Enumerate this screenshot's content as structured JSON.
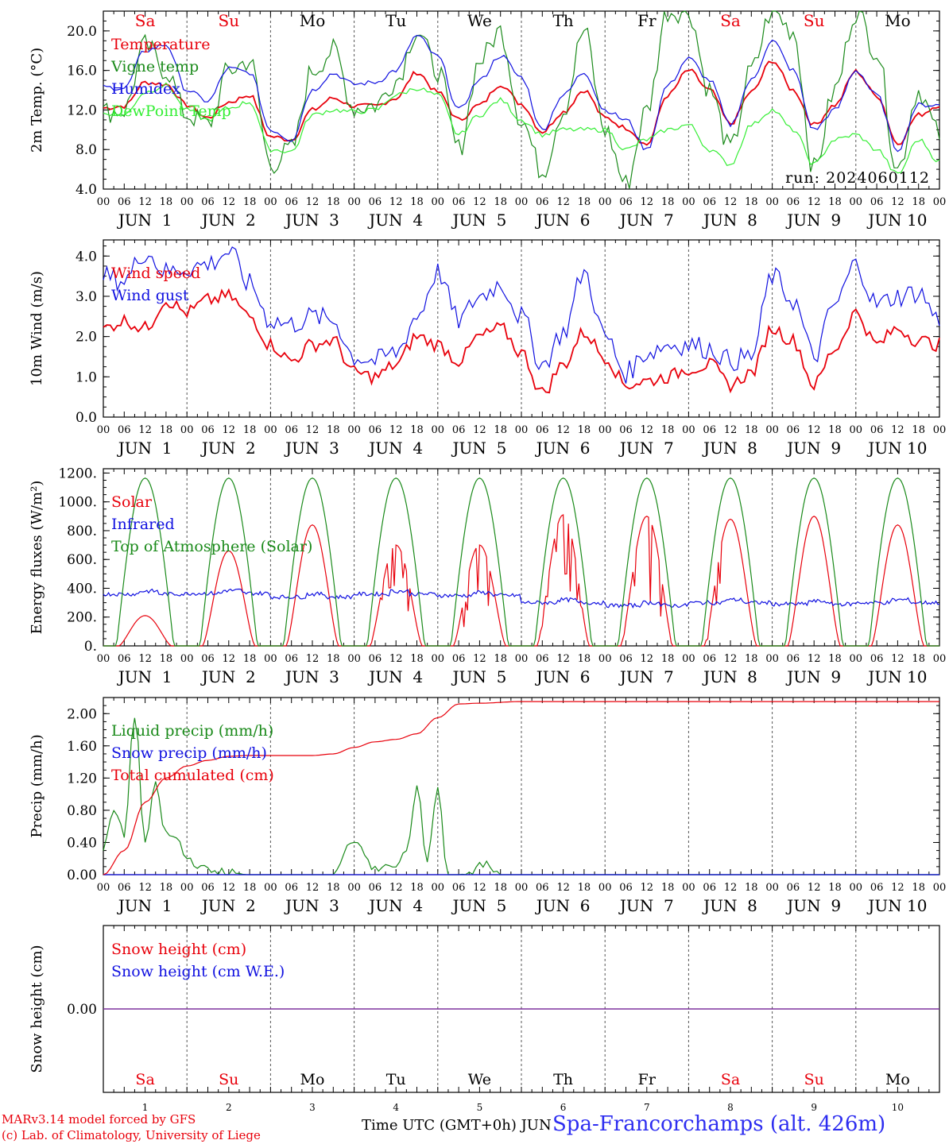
{
  "footer": {
    "credit1": "MARv3.14 model forced by GFS",
    "credit2": "(c) Lab. of Climatology, University of Liege",
    "xlabel": "Time UTC (GMT+0h) JUN",
    "station": "Spa-Francorchamps (alt. 426m)"
  },
  "days": [
    "Sa",
    "Su",
    "Mo",
    "Tu",
    "We",
    "Th",
    "Fr",
    "Sa",
    "Su",
    "Mo"
  ],
  "weekend_color": "#e8000b",
  "weekday_color": "#000000",
  "date_labels": [
    "JUN  1",
    "JUN  2",
    "JUN  3",
    "JUN  4",
    "JUN  5",
    "JUN  6",
    "JUN  7",
    "JUN  8",
    "JUN  9",
    "JUN 10"
  ],
  "hour_ticks": [
    "00",
    "06",
    "12",
    "18"
  ],
  "bottom_day_numbers": [
    "1",
    "2",
    "3",
    "4",
    "5",
    "6",
    "7",
    "8",
    "9",
    "10"
  ],
  "chart_data": [
    {
      "type": "line",
      "ylabel": "2m Temp. (°C)",
      "ylim": [
        4.0,
        22.0
      ],
      "yticks": [
        "4.0",
        "8.0",
        "12.0",
        "16.0",
        "20.0"
      ],
      "annotation": "run: 2024060112",
      "x_unit": "hours since JUN 1 00 UTC",
      "series": [
        {
          "name": "Temperature",
          "color": "#e8000b",
          "x": [
            0,
            6,
            12,
            18,
            24,
            30,
            36,
            42,
            48,
            54,
            60,
            66,
            72,
            78,
            84,
            90,
            96,
            102,
            108,
            114,
            120,
            126,
            132,
            138,
            144,
            150,
            156,
            162,
            168,
            174,
            180,
            186,
            192,
            198,
            204,
            210,
            216,
            222,
            228,
            234,
            240
          ],
          "y": [
            12.2,
            12.4,
            14.8,
            14.6,
            12.5,
            11.2,
            12.8,
            13.5,
            9.3,
            9.0,
            12.0,
            13.2,
            12.4,
            12.4,
            13.2,
            15.8,
            13.8,
            11.0,
            12.5,
            14.6,
            12.6,
            9.8,
            11.8,
            14.0,
            11.2,
            10.2,
            8.5,
            13.5,
            16.0,
            14.0,
            10.6,
            13.8,
            17.0,
            14.0,
            10.5,
            12.5,
            15.9,
            13.5,
            8.6,
            11.5,
            12.5
          ]
        },
        {
          "name": "Vigne temp",
          "color": "#1a8a1a",
          "x": [
            0,
            6,
            12,
            18,
            24,
            30,
            36,
            42,
            48,
            54,
            60,
            66,
            72,
            78,
            84,
            90,
            96,
            102,
            108,
            114,
            120,
            126,
            132,
            138,
            144,
            150,
            156,
            162,
            168,
            174,
            180,
            186,
            192,
            198,
            204,
            210,
            216,
            222,
            228,
            234,
            240
          ],
          "y": [
            11.8,
            12.0,
            18.5,
            16.0,
            11.5,
            10.5,
            16.0,
            17.0,
            6.5,
            8.0,
            16.0,
            18.0,
            12.2,
            12.5,
            15.0,
            20.0,
            16.0,
            8.0,
            17.0,
            20.0,
            11.0,
            5.8,
            12.0,
            20.0,
            10.0,
            4.5,
            12.0,
            22.0,
            22.0,
            14.0,
            8.0,
            16.0,
            22.0,
            20.0,
            6.0,
            14.0,
            22.0,
            18.0,
            6.0,
            14.0,
            9.5
          ]
        },
        {
          "name": "Humidex",
          "color": "#1010e0",
          "x": [
            0,
            6,
            12,
            18,
            24,
            30,
            36,
            42,
            48,
            54,
            60,
            66,
            72,
            78,
            84,
            90,
            96,
            102,
            108,
            114,
            120,
            126,
            132,
            138,
            144,
            150,
            156,
            162,
            168,
            174,
            180,
            186,
            192,
            198,
            204,
            210,
            216,
            222,
            228,
            234,
            240
          ],
          "y": [
            14.3,
            14.2,
            18.0,
            18.6,
            14.0,
            12.9,
            16.2,
            15.8,
            10.0,
            9.0,
            14.0,
            15.7,
            14.6,
            14.8,
            16.0,
            19.5,
            17.4,
            12.0,
            15.0,
            17.5,
            15.3,
            10.0,
            13.5,
            15.8,
            12.0,
            11.0,
            8.0,
            14.5,
            17.2,
            15.0,
            10.5,
            15.0,
            19.0,
            16.0,
            10.0,
            12.0,
            16.0,
            13.5,
            8.0,
            12.5,
            12.5
          ]
        },
        {
          "name": "DewPoint Temp",
          "color": "#33ee33",
          "x": [
            0,
            6,
            12,
            18,
            24,
            30,
            36,
            42,
            48,
            54,
            60,
            66,
            72,
            78,
            84,
            90,
            96,
            102,
            108,
            114,
            120,
            126,
            132,
            138,
            144,
            150,
            156,
            162,
            168,
            174,
            180,
            186,
            192,
            198,
            204,
            210,
            216,
            222,
            228,
            234,
            240
          ],
          "y": [
            11.7,
            11.5,
            13.8,
            14.5,
            12.0,
            11.0,
            12.2,
            12.8,
            8.0,
            7.8,
            11.5,
            12.0,
            11.8,
            12.0,
            13.5,
            14.2,
            13.5,
            9.5,
            11.5,
            13.0,
            11.0,
            9.5,
            10.0,
            10.0,
            10.0,
            8.0,
            9.0,
            10.0,
            10.5,
            8.0,
            6.5,
            10.5,
            12.0,
            10.0,
            6.5,
            9.0,
            9.5,
            8.0,
            5.5,
            9.0,
            6.8
          ]
        }
      ]
    },
    {
      "type": "line",
      "ylabel": "10m Wind (m/s)",
      "ylim": [
        0.0,
        4.4
      ],
      "yticks": [
        "0.0",
        "1.0",
        "2.0",
        "3.0",
        "4.0"
      ],
      "x_unit": "hours since JUN 1 00 UTC",
      "series": [
        {
          "name": "Wind speed",
          "color": "#e8000b",
          "x": [
            0,
            6,
            12,
            18,
            24,
            30,
            36,
            42,
            48,
            54,
            60,
            66,
            72,
            78,
            84,
            90,
            96,
            102,
            108,
            114,
            120,
            126,
            132,
            138,
            144,
            150,
            156,
            162,
            168,
            174,
            180,
            186,
            192,
            198,
            204,
            210,
            216,
            222,
            228,
            234,
            240
          ],
          "y": [
            2.2,
            2.4,
            2.2,
            2.9,
            2.6,
            2.9,
            3.0,
            2.5,
            1.8,
            1.4,
            1.8,
            1.9,
            1.1,
            1.0,
            1.3,
            2.0,
            1.8,
            1.4,
            2.0,
            2.2,
            1.6,
            0.6,
            1.3,
            2.1,
            1.5,
            0.8,
            0.9,
            1.0,
            1.2,
            1.3,
            0.8,
            1.1,
            2.2,
            1.9,
            0.8,
            1.7,
            2.6,
            1.8,
            2.2,
            1.9,
            1.8
          ]
        },
        {
          "name": "Wind gust",
          "color": "#1010e0",
          "x": [
            0,
            6,
            12,
            18,
            24,
            30,
            36,
            42,
            48,
            54,
            60,
            66,
            72,
            78,
            84,
            90,
            96,
            102,
            108,
            114,
            120,
            126,
            132,
            138,
            144,
            150,
            156,
            162,
            168,
            174,
            180,
            186,
            192,
            198,
            204,
            210,
            216,
            222,
            228,
            234,
            240
          ],
          "y": [
            3.5,
            3.4,
            4.1,
            3.6,
            3.7,
            3.8,
            4.1,
            3.3,
            2.4,
            2.3,
            2.5,
            2.4,
            1.5,
            1.4,
            1.6,
            2.5,
            3.6,
            2.4,
            3.0,
            3.3,
            2.5,
            1.3,
            2.1,
            3.6,
            2.0,
            1.1,
            1.6,
            1.8,
            1.8,
            1.7,
            1.4,
            1.5,
            3.5,
            2.9,
            1.5,
            2.8,
            3.8,
            2.8,
            3.0,
            3.1,
            2.4
          ]
        }
      ]
    },
    {
      "type": "line",
      "ylabel": "Energy fluxes (W/m²)",
      "ylim": [
        0,
        1200
      ],
      "yticks": [
        "0.",
        "200.",
        "400.",
        "600.",
        "800.",
        "1000.",
        "1200."
      ],
      "x_unit": "hours since JUN 1 00 UTC",
      "series": [
        {
          "name": "Solar",
          "color": "#e8000b",
          "daily_peaks": [
            210,
            660,
            840,
            700,
            700,
            910,
            900,
            880,
            900,
            840
          ]
        },
        {
          "name": "Infrared",
          "color": "#1010e0",
          "level": [
            360,
            365,
            340,
            360,
            350,
            300,
            280,
            300,
            290,
            300
          ]
        },
        {
          "name": "Top of Atmosphere (Solar)",
          "color": "#1a8a1a",
          "daily_peak": 1165
        }
      ]
    },
    {
      "type": "line",
      "ylabel": "Precip (mm/h)",
      "ylim": [
        0.0,
        2.2
      ],
      "yticks": [
        "0.00",
        "0.40",
        "0.80",
        "1.20",
        "1.60",
        "2.00"
      ],
      "x_unit": "hours since JUN 1 00 UTC",
      "series": [
        {
          "name": "Liquid precip (mm/h)",
          "color": "#1a8a1a",
          "x": [
            0,
            3,
            6,
            9,
            12,
            15,
            18,
            21,
            24,
            30,
            36,
            42,
            48,
            66,
            72,
            75,
            78,
            81,
            84,
            87,
            90,
            93,
            96,
            99,
            102,
            105,
            108,
            114,
            120,
            240
          ],
          "y": [
            0.3,
            0.8,
            0.5,
            2.0,
            0.4,
            1.1,
            0.5,
            0.45,
            0.2,
            0.05,
            0.02,
            0.0,
            0.0,
            0.0,
            0.45,
            0.3,
            0.05,
            0.15,
            0.1,
            0.25,
            1.05,
            0.2,
            1.05,
            0.0,
            0.0,
            0.02,
            0.15,
            0.0,
            0.0,
            0.0
          ]
        },
        {
          "name": "Snow precip (mm/h)",
          "color": "#1010e0",
          "x": [
            0,
            240
          ],
          "y": [
            0,
            0
          ]
        },
        {
          "name": "Total cumulated (cm)",
          "color": "#e8000b",
          "x": [
            0,
            6,
            12,
            18,
            24,
            30,
            36,
            42,
            48,
            60,
            66,
            72,
            78,
            84,
            90,
            96,
            102,
            108,
            120,
            240
          ],
          "y": [
            0.0,
            0.3,
            0.9,
            1.2,
            1.35,
            1.42,
            1.47,
            1.48,
            1.48,
            1.48,
            1.5,
            1.58,
            1.65,
            1.68,
            1.75,
            1.95,
            2.12,
            2.13,
            2.15,
            2.15
          ]
        }
      ]
    },
    {
      "type": "line",
      "ylabel": "Snow height (cm)",
      "yticks": [
        "0.00"
      ],
      "x_unit": "hours since JUN 1 00 UTC",
      "series": [
        {
          "name": "Snow height (cm)",
          "color": "#e8000b",
          "x": [
            0,
            240
          ],
          "y": [
            0,
            0
          ]
        },
        {
          "name": "Snow height (cm W.E.)",
          "color": "#1010e0",
          "x": [
            0,
            240
          ],
          "y": [
            0,
            0
          ]
        }
      ]
    }
  ]
}
